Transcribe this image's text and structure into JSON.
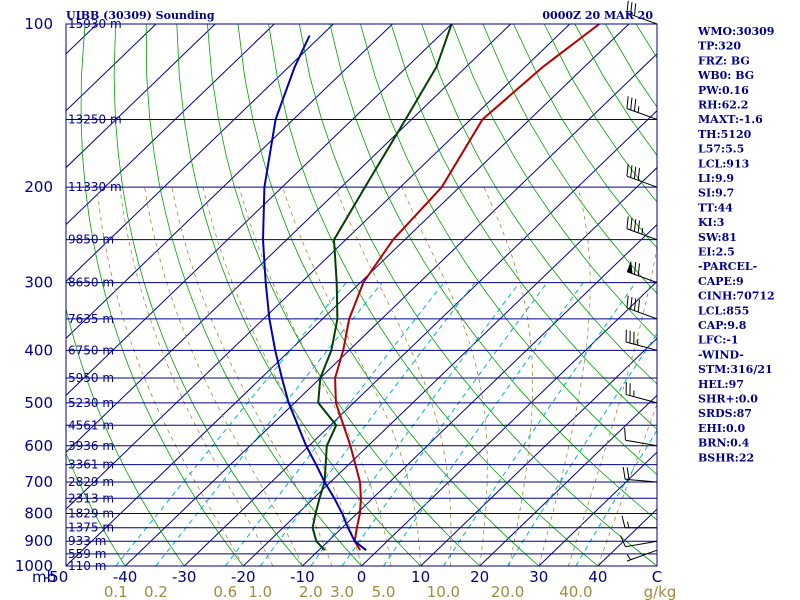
{
  "header": {
    "title": "UIBB (30309) Sounding",
    "datetime": "0000Z 20 MAR 20"
  },
  "indices": [
    "WMO:30309",
    "TP:320",
    "FRZ: BG",
    "WB0: BG",
    "PW:0.16",
    "RH:62.2",
    "MAXT:-1.6",
    "TH:5120",
    "L57:5.5",
    "LCL:913",
    "LI:9.9",
    "SI:9.7",
    "TT:44",
    "KI:3",
    "SW:81",
    "EI:2.5",
    "-PARCEL-",
    "CAPE:9",
    "CINH:70712",
    "LCL:855",
    "CAP:9.8",
    "LFC:-1",
    "-WIND-",
    "STM:316/21",
    "HEL:97",
    "SHR+:0.0",
    "SRDS:87",
    "EHI:0.0",
    "BRN:0.4",
    "BSHR:22"
  ],
  "colors": {
    "isobar": "#00008b",
    "isotherm": "#00008b",
    "dry_adiabat": "#00a000",
    "moist_adiabat": "#a08a3c",
    "mixing_ratio": "#00b4c8",
    "temperature": "#b40000",
    "dewpoint": "#004000",
    "parcel": "#0000b4",
    "wind": "#000000"
  },
  "chart_data": {
    "type": "line",
    "title": "UIBB (30309) Sounding",
    "subtitle": "0000Z 20 MAR 20",
    "xlabel": "",
    "ylabel": "mb",
    "y_scale": "log",
    "ylim": [
      1000,
      100
    ],
    "xlim": [
      -50,
      50
    ],
    "pressure_ticks": [
      100,
      200,
      300,
      400,
      500,
      600,
      700,
      800,
      900,
      1000
    ],
    "pressure_tick_labels": [
      "100",
      "200",
      "300",
      "400",
      "500",
      "600",
      "700",
      "800",
      "900",
      "1000"
    ],
    "temp_ticks": [
      -50,
      -40,
      -30,
      -20,
      -10,
      0,
      10,
      20,
      30,
      40,
      50
    ],
    "temp_tick_labels": [
      "-50",
      "-40",
      "-30",
      "-20",
      "-10",
      "0",
      "10",
      "20",
      "30",
      "40",
      "C"
    ],
    "axis_unit_label": "mb",
    "mixing_ratio_labels": [
      "0.1",
      "0.2",
      "0.6",
      "1.0",
      "2.0",
      "3.0",
      "5.0",
      "10.0",
      "20.0",
      "40.0",
      "g/kg"
    ],
    "height_labels": [
      {
        "p": 100,
        "label": "15930 m"
      },
      {
        "p": 150,
        "label": "13250 m"
      },
      {
        "p": 200,
        "label": "11330 m"
      },
      {
        "p": 250,
        "label": "9850 m"
      },
      {
        "p": 300,
        "label": "8650 m"
      },
      {
        "p": 350,
        "label": "7635 m"
      },
      {
        "p": 400,
        "label": "6750 m"
      },
      {
        "p": 450,
        "label": "5950 m"
      },
      {
        "p": 500,
        "label": "5230 m"
      },
      {
        "p": 550,
        "label": "4561 m"
      },
      {
        "p": 600,
        "label": "3936 m"
      },
      {
        "p": 650,
        "label": "3361 m"
      },
      {
        "p": 700,
        "label": "2829 m"
      },
      {
        "p": 750,
        "label": "2313 m"
      },
      {
        "p": 800,
        "label": "1829 m"
      },
      {
        "p": 850,
        "label": "1375 m"
      },
      {
        "p": 900,
        "label": "933 m"
      },
      {
        "p": 950,
        "label": "559 m"
      },
      {
        "p": 1000,
        "label": "110 m"
      }
    ],
    "series": [
      {
        "name": "",
        "role": "temperature",
        "points": [
          [
            935,
            -3
          ],
          [
            900,
            -5.5
          ],
          [
            850,
            -7.5
          ],
          [
            800,
            -9.5
          ],
          [
            750,
            -12
          ],
          [
            700,
            -15
          ],
          [
            600,
            -23
          ],
          [
            500,
            -33
          ],
          [
            450,
            -37.5
          ],
          [
            400,
            -41
          ],
          [
            350,
            -45.5
          ],
          [
            300,
            -49.5
          ],
          [
            250,
            -52
          ],
          [
            200,
            -53
          ],
          [
            150,
            -58
          ],
          [
            120,
            -57
          ],
          [
            100,
            -55
          ]
        ]
      },
      {
        "name": "",
        "role": "dewpoint",
        "points": [
          [
            935,
            -9
          ],
          [
            900,
            -12
          ],
          [
            850,
            -15
          ],
          [
            800,
            -17
          ],
          [
            750,
            -19
          ],
          [
            700,
            -21
          ],
          [
            600,
            -27
          ],
          [
            550,
            -29
          ],
          [
            500,
            -36
          ],
          [
            450,
            -40
          ],
          [
            400,
            -43
          ],
          [
            350,
            -47.5
          ],
          [
            300,
            -54
          ],
          [
            250,
            -62
          ],
          [
            200,
            -66
          ],
          [
            150,
            -71
          ],
          [
            120,
            -75
          ],
          [
            100,
            -80
          ]
        ]
      },
      {
        "name": "",
        "role": "parcel",
        "points": [
          [
            935,
            -2
          ],
          [
            900,
            -5.5
          ],
          [
            850,
            -9
          ],
          [
            800,
            -12.5
          ],
          [
            750,
            -16.5
          ],
          [
            700,
            -21
          ],
          [
            650,
            -25.5
          ],
          [
            600,
            -30.5
          ],
          [
            550,
            -35.5
          ],
          [
            500,
            -41
          ],
          [
            450,
            -46.5
          ],
          [
            400,
            -52.5
          ],
          [
            350,
            -59
          ],
          [
            300,
            -66
          ],
          [
            250,
            -74
          ],
          [
            200,
            -83
          ],
          [
            150,
            -93
          ],
          [
            120,
            -99
          ],
          [
            105,
            -102
          ]
        ]
      }
    ],
    "winds": [
      {
        "p": 935,
        "dir": 250,
        "spd": 5
      },
      {
        "p": 900,
        "dir": 260,
        "spd": 10
      },
      {
        "p": 850,
        "dir": 270,
        "spd": 15
      },
      {
        "p": 700,
        "dir": 275,
        "spd": 20
      },
      {
        "p": 600,
        "dir": 280,
        "spd": 10
      },
      {
        "p": 500,
        "dir": 285,
        "spd": 25
      },
      {
        "p": 400,
        "dir": 285,
        "spd": 35
      },
      {
        "p": 350,
        "dir": 290,
        "spd": 40
      },
      {
        "p": 300,
        "dir": 290,
        "spd": 70
      },
      {
        "p": 250,
        "dir": 290,
        "spd": 45
      },
      {
        "p": 200,
        "dir": 290,
        "spd": 40
      },
      {
        "p": 150,
        "dir": 290,
        "spd": 35
      },
      {
        "p": 100,
        "dir": 290,
        "spd": 30
      }
    ]
  }
}
